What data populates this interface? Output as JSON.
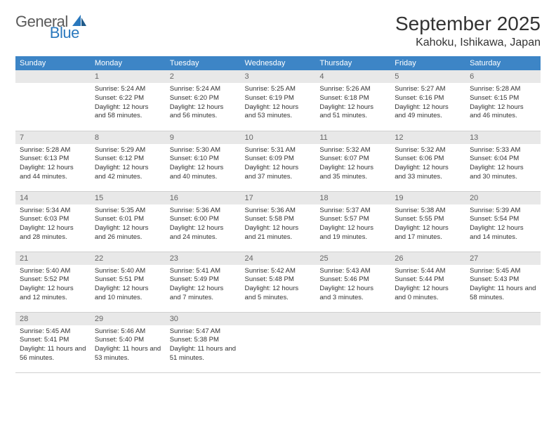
{
  "brand": {
    "general": "General",
    "blue": "Blue"
  },
  "title": "September 2025",
  "location": "Kahoku, Ishikawa, Japan",
  "colors": {
    "header_bg": "#3d85c6",
    "header_fg": "#ffffff",
    "daynum_bg": "#e8e8e8",
    "daynum_fg": "#666666",
    "border": "#d0d0d0",
    "text": "#333333",
    "logo_gray": "#5a5a5a",
    "logo_blue": "#2a78bd",
    "page_bg": "#ffffff"
  },
  "typography": {
    "title_fontsize": 28,
    "location_fontsize": 16,
    "header_fontsize": 11,
    "daynum_fontsize": 11,
    "body_fontsize": 9.5,
    "font_family": "Arial"
  },
  "weekdays": [
    "Sunday",
    "Monday",
    "Tuesday",
    "Wednesday",
    "Thursday",
    "Friday",
    "Saturday"
  ],
  "weeks": [
    [
      {
        "n": "",
        "sr": "",
        "ss": "",
        "dl": ""
      },
      {
        "n": "1",
        "sr": "Sunrise: 5:24 AM",
        "ss": "Sunset: 6:22 PM",
        "dl": "Daylight: 12 hours and 58 minutes."
      },
      {
        "n": "2",
        "sr": "Sunrise: 5:24 AM",
        "ss": "Sunset: 6:20 PM",
        "dl": "Daylight: 12 hours and 56 minutes."
      },
      {
        "n": "3",
        "sr": "Sunrise: 5:25 AM",
        "ss": "Sunset: 6:19 PM",
        "dl": "Daylight: 12 hours and 53 minutes."
      },
      {
        "n": "4",
        "sr": "Sunrise: 5:26 AM",
        "ss": "Sunset: 6:18 PM",
        "dl": "Daylight: 12 hours and 51 minutes."
      },
      {
        "n": "5",
        "sr": "Sunrise: 5:27 AM",
        "ss": "Sunset: 6:16 PM",
        "dl": "Daylight: 12 hours and 49 minutes."
      },
      {
        "n": "6",
        "sr": "Sunrise: 5:28 AM",
        "ss": "Sunset: 6:15 PM",
        "dl": "Daylight: 12 hours and 46 minutes."
      }
    ],
    [
      {
        "n": "7",
        "sr": "Sunrise: 5:28 AM",
        "ss": "Sunset: 6:13 PM",
        "dl": "Daylight: 12 hours and 44 minutes."
      },
      {
        "n": "8",
        "sr": "Sunrise: 5:29 AM",
        "ss": "Sunset: 6:12 PM",
        "dl": "Daylight: 12 hours and 42 minutes."
      },
      {
        "n": "9",
        "sr": "Sunrise: 5:30 AM",
        "ss": "Sunset: 6:10 PM",
        "dl": "Daylight: 12 hours and 40 minutes."
      },
      {
        "n": "10",
        "sr": "Sunrise: 5:31 AM",
        "ss": "Sunset: 6:09 PM",
        "dl": "Daylight: 12 hours and 37 minutes."
      },
      {
        "n": "11",
        "sr": "Sunrise: 5:32 AM",
        "ss": "Sunset: 6:07 PM",
        "dl": "Daylight: 12 hours and 35 minutes."
      },
      {
        "n": "12",
        "sr": "Sunrise: 5:32 AM",
        "ss": "Sunset: 6:06 PM",
        "dl": "Daylight: 12 hours and 33 minutes."
      },
      {
        "n": "13",
        "sr": "Sunrise: 5:33 AM",
        "ss": "Sunset: 6:04 PM",
        "dl": "Daylight: 12 hours and 30 minutes."
      }
    ],
    [
      {
        "n": "14",
        "sr": "Sunrise: 5:34 AM",
        "ss": "Sunset: 6:03 PM",
        "dl": "Daylight: 12 hours and 28 minutes."
      },
      {
        "n": "15",
        "sr": "Sunrise: 5:35 AM",
        "ss": "Sunset: 6:01 PM",
        "dl": "Daylight: 12 hours and 26 minutes."
      },
      {
        "n": "16",
        "sr": "Sunrise: 5:36 AM",
        "ss": "Sunset: 6:00 PM",
        "dl": "Daylight: 12 hours and 24 minutes."
      },
      {
        "n": "17",
        "sr": "Sunrise: 5:36 AM",
        "ss": "Sunset: 5:58 PM",
        "dl": "Daylight: 12 hours and 21 minutes."
      },
      {
        "n": "18",
        "sr": "Sunrise: 5:37 AM",
        "ss": "Sunset: 5:57 PM",
        "dl": "Daylight: 12 hours and 19 minutes."
      },
      {
        "n": "19",
        "sr": "Sunrise: 5:38 AM",
        "ss": "Sunset: 5:55 PM",
        "dl": "Daylight: 12 hours and 17 minutes."
      },
      {
        "n": "20",
        "sr": "Sunrise: 5:39 AM",
        "ss": "Sunset: 5:54 PM",
        "dl": "Daylight: 12 hours and 14 minutes."
      }
    ],
    [
      {
        "n": "21",
        "sr": "Sunrise: 5:40 AM",
        "ss": "Sunset: 5:52 PM",
        "dl": "Daylight: 12 hours and 12 minutes."
      },
      {
        "n": "22",
        "sr": "Sunrise: 5:40 AM",
        "ss": "Sunset: 5:51 PM",
        "dl": "Daylight: 12 hours and 10 minutes."
      },
      {
        "n": "23",
        "sr": "Sunrise: 5:41 AM",
        "ss": "Sunset: 5:49 PM",
        "dl": "Daylight: 12 hours and 7 minutes."
      },
      {
        "n": "24",
        "sr": "Sunrise: 5:42 AM",
        "ss": "Sunset: 5:48 PM",
        "dl": "Daylight: 12 hours and 5 minutes."
      },
      {
        "n": "25",
        "sr": "Sunrise: 5:43 AM",
        "ss": "Sunset: 5:46 PM",
        "dl": "Daylight: 12 hours and 3 minutes."
      },
      {
        "n": "26",
        "sr": "Sunrise: 5:44 AM",
        "ss": "Sunset: 5:44 PM",
        "dl": "Daylight: 12 hours and 0 minutes."
      },
      {
        "n": "27",
        "sr": "Sunrise: 5:45 AM",
        "ss": "Sunset: 5:43 PM",
        "dl": "Daylight: 11 hours and 58 minutes."
      }
    ],
    [
      {
        "n": "28",
        "sr": "Sunrise: 5:45 AM",
        "ss": "Sunset: 5:41 PM",
        "dl": "Daylight: 11 hours and 56 minutes."
      },
      {
        "n": "29",
        "sr": "Sunrise: 5:46 AM",
        "ss": "Sunset: 5:40 PM",
        "dl": "Daylight: 11 hours and 53 minutes."
      },
      {
        "n": "30",
        "sr": "Sunrise: 5:47 AM",
        "ss": "Sunset: 5:38 PM",
        "dl": "Daylight: 11 hours and 51 minutes."
      },
      {
        "n": "",
        "sr": "",
        "ss": "",
        "dl": ""
      },
      {
        "n": "",
        "sr": "",
        "ss": "",
        "dl": ""
      },
      {
        "n": "",
        "sr": "",
        "ss": "",
        "dl": ""
      },
      {
        "n": "",
        "sr": "",
        "ss": "",
        "dl": ""
      }
    ]
  ]
}
